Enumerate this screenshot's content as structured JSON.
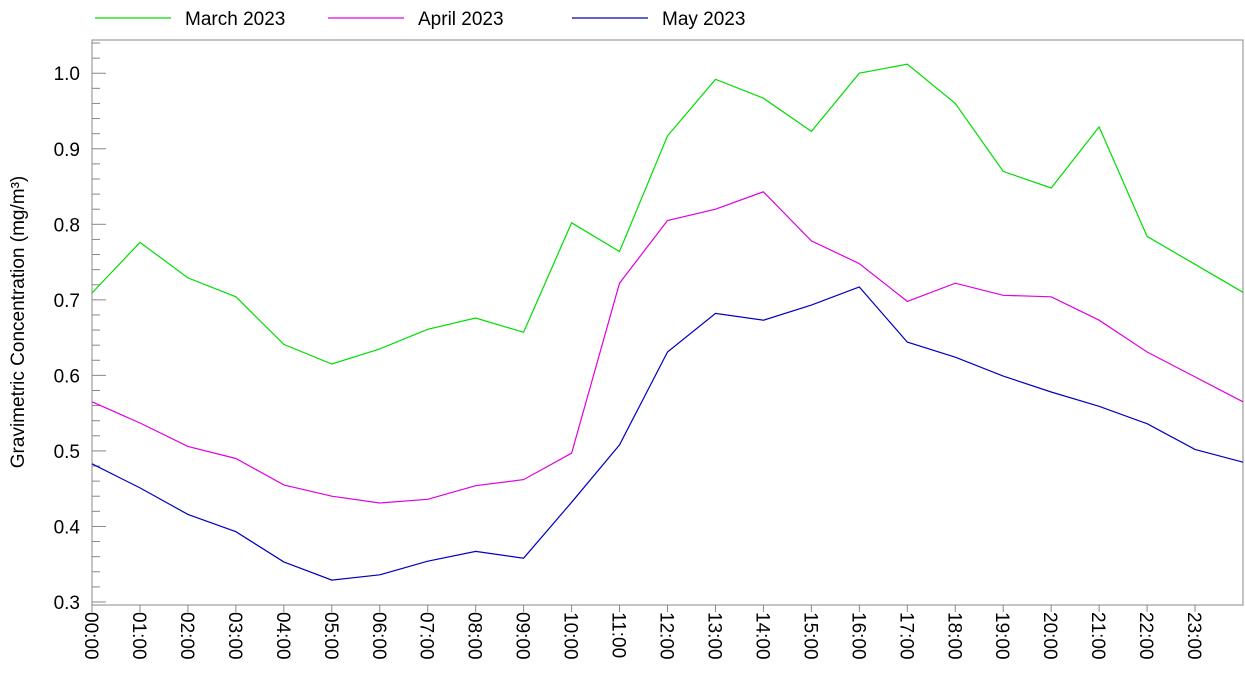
{
  "chart_data": {
    "type": "line",
    "y_label": "Gravimetric Concentration (mg/m³)",
    "categories": [
      "00:00",
      "01:00",
      "02:00",
      "03:00",
      "04:00",
      "05:00",
      "06:00",
      "07:00",
      "08:00",
      "09:00",
      "10:00",
      "11:00",
      "12:00",
      "13:00",
      "14:00",
      "15:00",
      "16:00",
      "17:00",
      "18:00",
      "19:00",
      "20:00",
      "21:00",
      "22:00",
      "23:00",
      null
    ],
    "series": [
      {
        "name": "March 2023",
        "color": "#00dd00",
        "values": [
          0.709,
          0.776,
          0.729,
          0.704,
          0.641,
          0.615,
          0.635,
          0.661,
          0.676,
          0.657,
          0.802,
          0.764,
          0.917,
          0.992,
          0.967,
          0.923,
          1.0,
          1.012,
          0.96,
          0.87,
          0.848,
          0.929,
          0.784,
          0.747,
          0.71
        ]
      },
      {
        "name": "April 2023",
        "color": "#e000e0",
        "values": [
          0.565,
          0.537,
          0.506,
          0.49,
          0.455,
          0.44,
          0.431,
          0.436,
          0.454,
          0.462,
          0.497,
          0.722,
          0.805,
          0.82,
          0.843,
          0.778,
          0.748,
          0.698,
          0.722,
          0.706,
          0.704,
          0.673,
          0.631,
          0.598,
          0.565
        ]
      },
      {
        "name": "May 2023",
        "color": "#0000c0",
        "values": [
          0.483,
          0.451,
          0.416,
          0.393,
          0.353,
          0.329,
          0.336,
          0.354,
          0.367,
          0.358,
          0.432,
          0.508,
          0.631,
          0.682,
          0.673,
          0.693,
          0.717,
          0.644,
          0.624,
          0.599,
          0.578,
          0.559,
          0.536,
          0.502,
          0.485
        ]
      }
    ],
    "ylim": [
      0.296,
      1.044
    ],
    "yticks": [
      {
        "value": 0.3,
        "label": "0.3"
      },
      {
        "value": 0.4,
        "label": "0.4"
      },
      {
        "value": 0.5,
        "label": "0.5"
      },
      {
        "value": 0.6,
        "label": "0.6"
      },
      {
        "value": 0.7,
        "label": "0.7"
      },
      {
        "value": 0.8,
        "label": "0.8"
      },
      {
        "value": 0.9,
        "label": "0.9"
      },
      {
        "value": 1.0,
        "label": "1.0"
      }
    ],
    "minor_yticks": [
      0.32,
      0.34,
      0.36,
      0.38,
      0.42,
      0.44,
      0.46,
      0.48,
      0.52,
      0.54,
      0.56,
      0.58,
      0.62,
      0.64,
      0.66,
      0.68,
      0.72,
      0.74,
      0.76,
      0.78,
      0.82,
      0.84,
      0.86,
      0.88,
      0.92,
      0.94,
      0.96,
      0.98,
      1.02,
      1.04
    ],
    "grid": false,
    "legend": "top"
  }
}
